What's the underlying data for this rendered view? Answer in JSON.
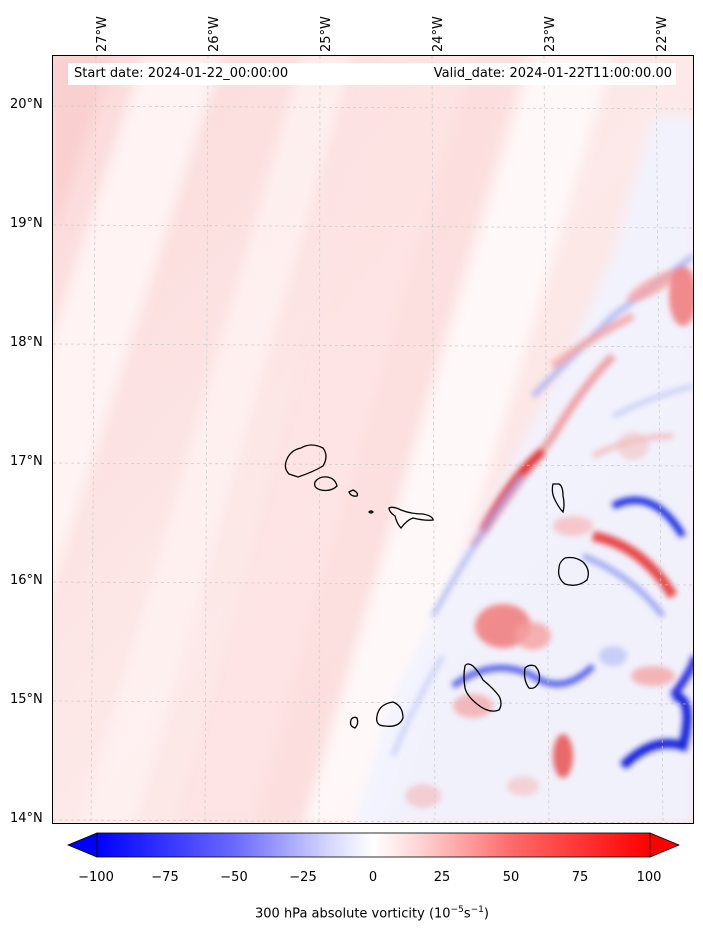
{
  "map": {
    "start_date_label": "Start date: 2024-01-22_00:00:00",
    "valid_date_label": "Valid_date: 2024-01-22T11:00:00.00",
    "longitude_labels": [
      "27°W",
      "26°W",
      "25°W",
      "24°W",
      "23°W",
      "22°W"
    ],
    "latitude_labels": [
      "20°N",
      "19°N",
      "18°N",
      "17°N",
      "16°N",
      "15°N",
      "14°N"
    ],
    "gridlines": true,
    "field": "300 hPa absolute vorticity",
    "region": "Cape Verde islands"
  },
  "colorbar": {
    "ticks": [
      "−100",
      "−75",
      "−50",
      "−25",
      "0",
      "25",
      "50",
      "75",
      "100"
    ],
    "label_main": "300 hPa absolute vorticity (10",
    "label_exp1": "−5",
    "label_mid": "s",
    "label_exp2": "−1",
    "label_end": ")",
    "min_color": "#0000ff",
    "mid_color": "#ffffff",
    "max_color": "#ff0000",
    "extend": "both"
  }
}
